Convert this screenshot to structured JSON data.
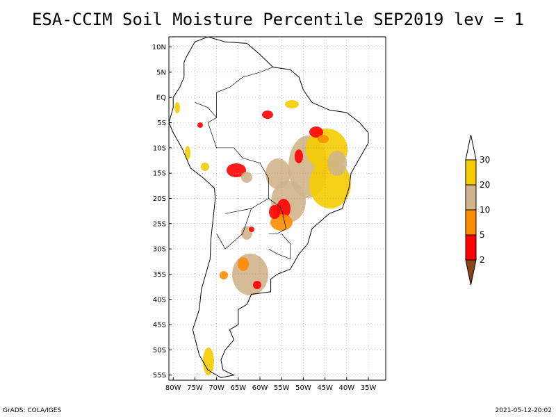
{
  "title": "ESA-CCIM Soil Moisture Percentile SEP2019 lev = 1",
  "footer": {
    "left": "GrADS: COLA/IGES",
    "right": "2021-05-12-20:02"
  },
  "map": {
    "lon_range": [
      -81,
      -31
    ],
    "lat_range": [
      -56,
      12
    ],
    "lon_ticks": [
      {
        "value": -80,
        "label": "80W"
      },
      {
        "value": -75,
        "label": "75W"
      },
      {
        "value": -70,
        "label": "70W"
      },
      {
        "value": -65,
        "label": "65W"
      },
      {
        "value": -60,
        "label": "60W"
      },
      {
        "value": -55,
        "label": "55W"
      },
      {
        "value": -50,
        "label": "50W"
      },
      {
        "value": -45,
        "label": "45W"
      },
      {
        "value": -40,
        "label": "40W"
      },
      {
        "value": -35,
        "label": "35W"
      }
    ],
    "lat_ticks": [
      {
        "value": 10,
        "label": "10N"
      },
      {
        "value": 5,
        "label": "5N"
      },
      {
        "value": 0,
        "label": "EQ"
      },
      {
        "value": -5,
        "label": "5S"
      },
      {
        "value": -10,
        "label": "10S"
      },
      {
        "value": -15,
        "label": "15S"
      },
      {
        "value": -20,
        "label": "20S"
      },
      {
        "value": -25,
        "label": "25S"
      },
      {
        "value": -30,
        "label": "30S"
      },
      {
        "value": -35,
        "label": "35S"
      },
      {
        "value": -40,
        "label": "40S"
      },
      {
        "value": -45,
        "label": "45S"
      },
      {
        "value": -50,
        "label": "50S"
      },
      {
        "value": -55,
        "label": "55S"
      }
    ],
    "grid": true
  },
  "legend": {
    "labels": [
      "30",
      "20",
      "10",
      "5",
      "2"
    ],
    "colors": [
      "#ffffff",
      "#f5cc00",
      "#d2b48c",
      "#ff8c00",
      "#ff0000",
      "#8b4513"
    ]
  }
}
